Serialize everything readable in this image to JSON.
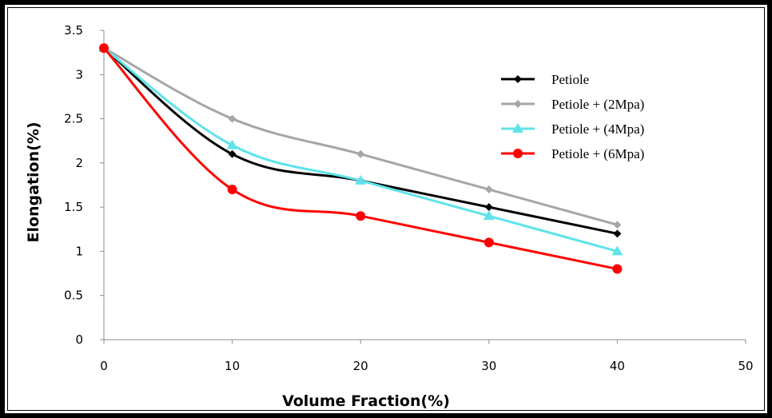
{
  "chart_data": {
    "type": "line",
    "title": "",
    "xlabel": "Volume Fraction(%)",
    "ylabel": "Elongation(%)",
    "xlim": [
      0,
      50
    ],
    "ylim": [
      0,
      3.5
    ],
    "xticks": [
      "0",
      "10",
      "20",
      "30",
      "40",
      "50"
    ],
    "yticks": [
      "0",
      "0.5",
      "1",
      "1.5",
      "2",
      "2.5",
      "3",
      "3.5"
    ],
    "grid": false,
    "legend_position": "top-right",
    "x": [
      0,
      10,
      20,
      30,
      40
    ],
    "series": [
      {
        "name": "Petiole",
        "values": [
          3.3,
          2.1,
          1.8,
          1.5,
          1.2
        ],
        "color": "#000000",
        "marker": "diamond"
      },
      {
        "name": "Petiole + (2Mpa)",
        "values": [
          3.3,
          2.5,
          2.1,
          1.7,
          1.3
        ],
        "color": "#a6a6a6",
        "marker": "diamond"
      },
      {
        "name": "Petiole + (4Mpa)",
        "values": [
          3.3,
          2.2,
          1.8,
          1.4,
          1.0
        ],
        "color": "#5fe3ea",
        "marker": "triangle"
      },
      {
        "name": "Petiole + (6Mpa)",
        "values": [
          3.3,
          1.7,
          1.4,
          1.1,
          0.8
        ],
        "color": "#ff0000",
        "marker": "circle"
      }
    ]
  }
}
